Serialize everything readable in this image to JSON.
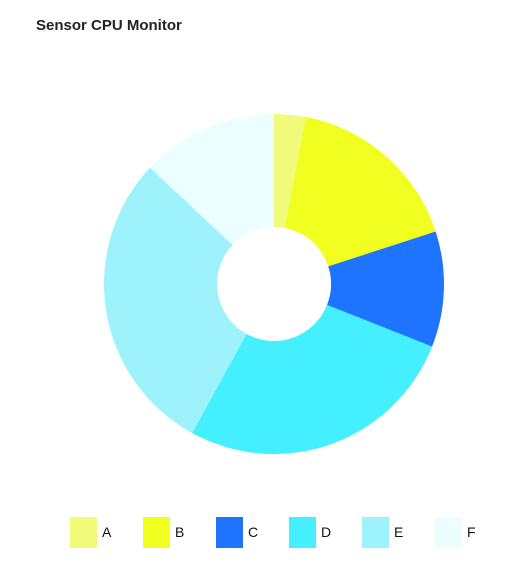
{
  "title": "Sensor CPU Monitor",
  "chart_data": {
    "type": "pie",
    "donut": true,
    "title": "Sensor CPU Monitor",
    "categories": [
      "A",
      "B",
      "C",
      "D",
      "E",
      "F"
    ],
    "values": [
      3,
      17,
      11,
      27,
      29,
      13
    ],
    "colors": [
      "#f0fb7a",
      "#f0ff1f",
      "#1e74ff",
      "#44f0ff",
      "#9ef2fc",
      "#eafffe"
    ],
    "legend": "bottom"
  }
}
